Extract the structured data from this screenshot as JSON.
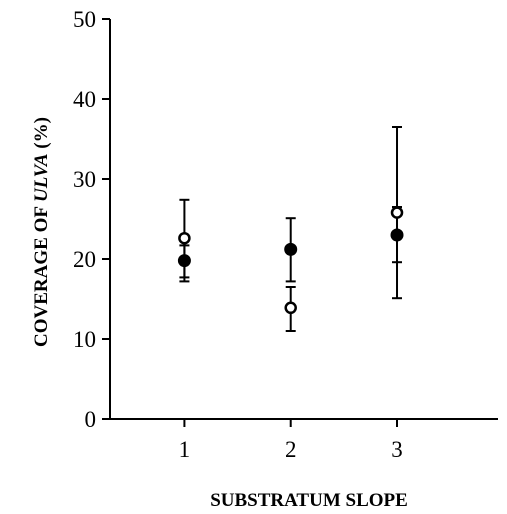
{
  "chart_data": {
    "type": "scatter",
    "title": "",
    "xlabel": "SUBSTRATUM SLOPE",
    "ylabel_parts": [
      "COVERAGE OF ",
      "ULVA",
      "  (%)"
    ],
    "x_ticks": [
      "1",
      "2",
      "3"
    ],
    "y_ticks": [
      "0",
      "10",
      "20",
      "30",
      "40",
      "50"
    ],
    "xlim": [
      0.3,
      3.95
    ],
    "ylim": [
      0,
      50
    ],
    "grid": false,
    "legend": "none",
    "series": [
      {
        "marker": "filled-circle",
        "color": "#000000",
        "points": [
          {
            "x": 1,
            "y": 19.8,
            "err_low": 17.7,
            "err_high": 21.7
          },
          {
            "x": 2,
            "y": 21.2,
            "err_low": 17.2,
            "err_high": 25.1
          },
          {
            "x": 3,
            "y": 23.0,
            "err_low": 19.6,
            "err_high": 26.5
          }
        ]
      },
      {
        "marker": "open-circle",
        "color": "#000000",
        "points": [
          {
            "x": 1,
            "y": 22.6,
            "err_low": 17.2,
            "err_high": 27.4
          },
          {
            "x": 2,
            "y": 13.9,
            "err_low": 11.0,
            "err_high": 16.5
          },
          {
            "x": 3,
            "y": 25.8,
            "err_low": 15.1,
            "err_high": 36.5
          }
        ]
      }
    ]
  }
}
